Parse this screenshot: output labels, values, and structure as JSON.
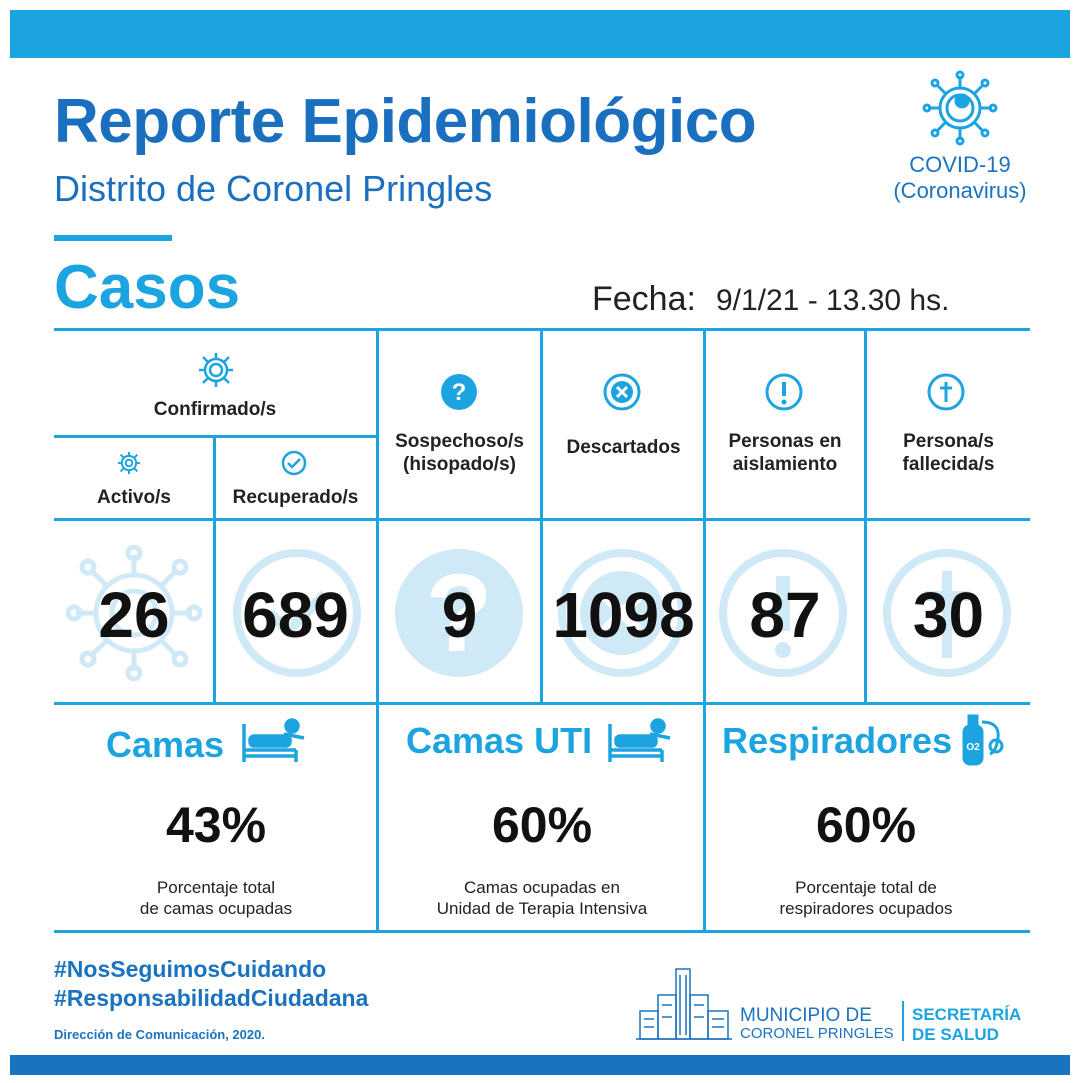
{
  "header": {
    "title": "Reporte Epidemiológico",
    "subtitle": "Distrito de Coronel Pringles",
    "covid_line1": "COVID-19",
    "covid_line2": "(Coronavirus)"
  },
  "section_title": "Casos",
  "fecha": {
    "label": "Fecha:",
    "value": "9/1/21 - 13.30 hs."
  },
  "table": {
    "confirmados_label": "Confirmado/s",
    "activos_label": "Activo/s",
    "recuperados_label": "Recuperado/s",
    "sospechosos_label_1": "Sospechoso/s",
    "sospechosos_label_2": "(hisopado/s)",
    "descartados_label": "Descartados",
    "aislamiento_label_1": "Personas en",
    "aislamiento_label_2": "aislamiento",
    "fallecidos_label_1": "Persona/s",
    "fallecidos_label_2": "fallecida/s",
    "activos": "26",
    "recuperados": "689",
    "sospechosos": "9",
    "descartados": "1098",
    "aislamiento": "87",
    "fallecidos": "30"
  },
  "beds": [
    {
      "title": "Camas",
      "percent": "43%",
      "desc_1": "Porcentaje total",
      "desc_2": "de camas ocupadas",
      "icon": "bed-icon"
    },
    {
      "title": "Camas UTI",
      "percent": "60%",
      "desc_1": "Camas ocupadas en",
      "desc_2": "Unidad de Terapia Intensiva",
      "icon": "bed-icon"
    },
    {
      "title": "Respiradores",
      "percent": "60%",
      "desc_1": "Porcentaje total de",
      "desc_2": "respiradores ocupados",
      "icon": "oxygen-tank-icon"
    }
  ],
  "footer": {
    "hashtag1": "#NosSeguimosCuidando",
    "hashtag2": "#ResponsabilidadCiudadana",
    "credit": "Dirección de Comunicación, 2020.",
    "muni1": "MUNICIPIO DE",
    "muni2": "CORONEL PRINGLES",
    "sec1": "SECRETARÍA",
    "sec2": "DE SALUD"
  },
  "colors": {
    "accent": "#1ca4e0",
    "dark_blue": "#1b73c0",
    "light_blue": "#cfe9f7"
  }
}
